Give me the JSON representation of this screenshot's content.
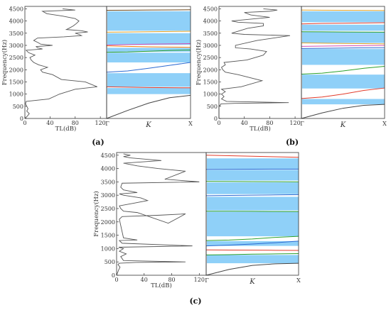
{
  "chart_data": [
    {
      "panel": "(a)",
      "type": "line",
      "tl": {
        "xlabel": "TL(dB)",
        "ylabel": "Frequency(Hz)",
        "xlim": [
          0,
          130
        ],
        "ylim": [
          0,
          4600
        ],
        "xticks": [
          "0",
          "40",
          "80",
          "120"
        ],
        "yticks": [
          "0",
          "500",
          "1000",
          "1500",
          "2000",
          "2500",
          "3000",
          "3500",
          "4000",
          "4500"
        ],
        "x": [
          0,
          4,
          7,
          3,
          5,
          3,
          1,
          2,
          38,
          55,
          80,
          115,
          96,
          58,
          44,
          28,
          25,
          36,
          22,
          14,
          10,
          8,
          16,
          6,
          2,
          28,
          20,
          18,
          44,
          25,
          22,
          14,
          20,
          62,
          90,
          86,
          80,
          100,
          90,
          66,
          70,
          77,
          82,
          86,
          80,
          60,
          35,
          28,
          80,
          60
        ],
        "y": [
          0,
          100,
          200,
          300,
          400,
          500,
          600,
          700,
          800,
          1000,
          1200,
          1300,
          1500,
          1600,
          1800,
          1900,
          2000,
          2100,
          2200,
          2300,
          2400,
          2500,
          2600,
          2700,
          2800,
          2850,
          2900,
          2950,
          3000,
          3050,
          3100,
          3200,
          3300,
          3350,
          3400,
          3450,
          3500,
          3550,
          3600,
          3650,
          3700,
          3800,
          3900,
          4000,
          4100,
          4200,
          4300,
          4400,
          4450,
          4500
        ]
      },
      "band": {
        "xlabel": "K",
        "xticks": [
          "Γ",
          "X"
        ],
        "ylim": [
          0,
          4600
        ],
        "gaps": [
          [
            1000,
            1250
          ],
          [
            1300,
            1860
          ],
          [
            2300,
            2700
          ],
          [
            2740,
            2900
          ],
          [
            3020,
            3500
          ],
          [
            3600,
            4400
          ]
        ],
        "branches": [
          {
            "color": "#444444",
            "values": [
              0,
              330,
              630,
              850,
              950
            ]
          },
          {
            "color": "#e23b2a",
            "values": [
              1300,
              1285,
              1270,
              1262,
              1260
            ]
          },
          {
            "color": "#2d6bd2",
            "values": [
              1900,
              1950,
              2060,
              2180,
              2300
            ]
          },
          {
            "color": "#2ca02c",
            "values": [
              2720,
              2730,
              2760,
              2790,
              2810
            ]
          },
          {
            "color": "#ff7f0e",
            "values": [
              2980,
              2960,
              2940,
              2930,
              2920
            ]
          },
          {
            "color": "#d14db4",
            "values": [
              3010,
              3030,
              3050,
              3060,
              3070
            ]
          },
          {
            "color": "#e5a52a",
            "values": [
              3540,
              3550,
              3560,
              3570,
              3580
            ]
          },
          {
            "color": "#6e4a1e",
            "values": [
              4440,
              4445,
              4450,
              4455,
              4460
            ]
          }
        ]
      }
    },
    {
      "panel": "(b)",
      "type": "line",
      "tl": {
        "xlabel": "TL(dB)",
        "ylabel": "Frequency(Hz)",
        "xlim": [
          0,
          130
        ],
        "ylim": [
          0,
          4600
        ],
        "xticks": [
          "0",
          "40",
          "80",
          "120"
        ],
        "yticks": [
          "0",
          "500",
          "1000",
          "1500",
          "2000",
          "2500",
          "3000",
          "3500",
          "4000",
          "4500"
        ],
        "x": [
          0,
          0,
          2,
          3,
          25,
          110,
          12,
          4,
          8,
          4,
          10,
          4,
          35,
          68,
          30,
          10,
          6,
          4,
          10,
          8,
          44,
          70,
          75,
          50,
          26,
          26,
          60,
          112,
          40,
          20,
          45,
          70,
          70,
          30,
          20,
          80,
          50,
          40,
          80,
          92,
          70
        ],
        "y": [
          0,
          500,
          550,
          600,
          620,
          650,
          700,
          800,
          900,
          1000,
          1100,
          1200,
          1300,
          1550,
          1800,
          1900,
          2000,
          2100,
          2200,
          2300,
          2400,
          2600,
          2750,
          2850,
          2900,
          3000,
          3200,
          3400,
          3450,
          3500,
          3700,
          3800,
          3900,
          3950,
          4000,
          4150,
          4250,
          4350,
          4400,
          4450,
          4500
        ]
      },
      "band": {
        "xlabel": "K",
        "xticks": [
          "Γ",
          "X"
        ],
        "ylim": [
          0,
          4600
        ],
        "gaps": [
          [
            580,
            800
          ],
          [
            1230,
            1800
          ],
          [
            2200,
            2850
          ],
          [
            3100,
            3550
          ],
          [
            3600,
            3850
          ],
          [
            3950,
            4400
          ]
        ],
        "branches": [
          {
            "color": "#444444",
            "values": [
              0,
              230,
              420,
              540,
              580
            ]
          },
          {
            "color": "#e23b2a",
            "values": [
              820,
              880,
              1000,
              1150,
              1250
            ]
          },
          {
            "color": "#2ca02c",
            "values": [
              1820,
              1860,
              1950,
              2060,
              2140
            ]
          },
          {
            "color": "#2d6bd2",
            "values": [
              2870,
              2880,
              2890,
              2900,
              2905
            ]
          },
          {
            "color": "#d14db4",
            "values": [
              2960,
              2970,
              2980,
              2990,
              3000
            ]
          },
          {
            "color": "#e5a52a",
            "values": [
              3100,
              3090,
              3080,
              3070,
              3060
            ]
          },
          {
            "color": "#2ca02c",
            "values": [
              3560,
              3555,
              3550,
              3545,
              3540
            ]
          },
          {
            "color": "#e23b2a",
            "values": [
              3880,
              3900,
              3910,
              3920,
              3930
            ]
          },
          {
            "color": "#e5a52a",
            "values": [
              4450,
              4445,
              4440,
              4435,
              4430
            ]
          }
        ]
      }
    },
    {
      "panel": "(c)",
      "type": "line",
      "tl": {
        "xlabel": "TL(dB)",
        "ylabel": "Frequency(Hz)",
        "xlim": [
          0,
          130
        ],
        "ylim": [
          0,
          4600
        ],
        "xticks": [
          "0",
          "40",
          "80",
          "120"
        ],
        "yticks": [
          "0",
          "500",
          "1000",
          "1500",
          "2000",
          "2500",
          "3000",
          "3500",
          "4000",
          "4500"
        ],
        "x": [
          0,
          3,
          5,
          2,
          4,
          28,
          100,
          10,
          6,
          14,
          4,
          10,
          3,
          110,
          8,
          4,
          30,
          10,
          4,
          8,
          62,
          100,
          75,
          30,
          10,
          6,
          4,
          25,
          45,
          35,
          10,
          4,
          30,
          10,
          6,
          8,
          120,
          70,
          100,
          80,
          60,
          30,
          10,
          65,
          20,
          10,
          20,
          10
        ],
        "y": [
          0,
          200,
          300,
          400,
          450,
          480,
          500,
          550,
          700,
          800,
          900,
          1000,
          1050,
          1100,
          1200,
          1300,
          1320,
          1400,
          2100,
          2200,
          2250,
          2300,
          1950,
          2350,
          2400,
          2500,
          2600,
          2700,
          2800,
          2900,
          3000,
          3050,
          3100,
          3200,
          3300,
          3450,
          3500,
          3600,
          3900,
          3950,
          4000,
          4100,
          4200,
          4300,
          4400,
          4450,
          4500,
          4550
        ]
      },
      "band": {
        "xlabel": "K",
        "xticks": [
          "Γ",
          "X"
        ],
        "ylim": [
          0,
          4600
        ],
        "gaps": [
          [
            450,
            760
          ],
          [
            1100,
            1280
          ],
          [
            1460,
            2380
          ],
          [
            2430,
            2940
          ],
          [
            3040,
            3480
          ],
          [
            3550,
            3950
          ],
          [
            3990,
            4380
          ]
        ],
        "branches": [
          {
            "color": "#444444",
            "values": [
              0,
              220,
              370,
              430,
              450
            ]
          },
          {
            "color": "#2ca02c",
            "values": [
              760,
              770,
              790,
              800,
              810
            ]
          },
          {
            "color": "#e23b2a",
            "values": [
              950,
              945,
              940,
              935,
              930
            ]
          },
          {
            "color": "#2d6bd2",
            "values": [
              1100,
              1130,
              1170,
              1220,
              1280
            ]
          },
          {
            "color": "#2ca02c",
            "values": [
              1300,
              1320,
              1360,
              1420,
              1460
            ]
          },
          {
            "color": "#2ca02c",
            "values": [
              2400,
              2400,
              2395,
              2390,
              2385
            ]
          },
          {
            "color": "#2d6bd2",
            "values": [
              2980,
              2990,
              3000,
              3010,
              3020
            ]
          },
          {
            "color": "#2ca02c",
            "values": [
              3520,
              3515,
              3510,
              3505,
              3500
            ]
          },
          {
            "color": "#2d6bd2",
            "values": [
              3970,
              3972,
              3975,
              3978,
              3980
            ]
          },
          {
            "color": "#e23b2a",
            "values": [
              4500,
              4480,
              4460,
              4440,
              4420
            ]
          }
        ]
      }
    }
  ],
  "style": {
    "gap_color": "#8fd0f8",
    "tl_color": "#555555"
  }
}
